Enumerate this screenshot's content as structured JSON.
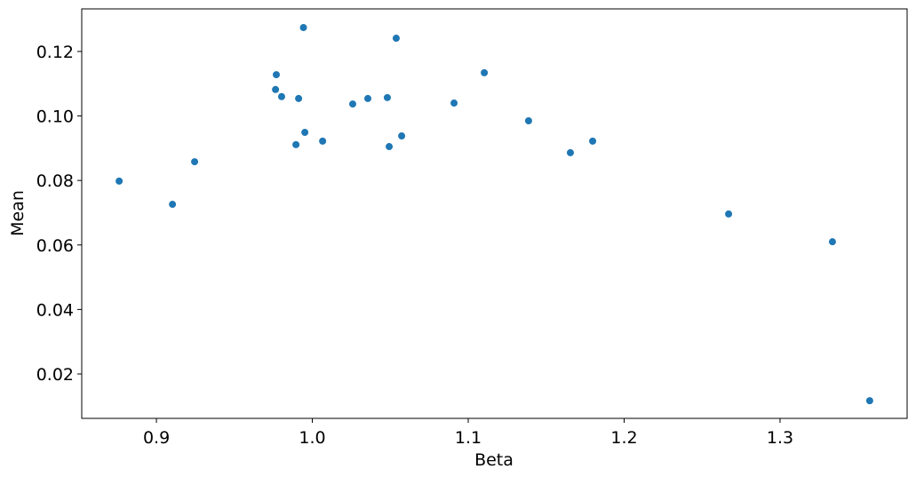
{
  "chart_data": {
    "type": "scatter",
    "x_label": "Beta",
    "y_label": "Mean",
    "color": "#1f77b4",
    "grid": false,
    "xlim": [
      0.8521,
      1.3815
    ],
    "ylim": [
      0.00623,
      0.1332
    ],
    "xticks": [
      0.9,
      {
        "value": 1,
        "label": "1.0"
      },
      1.1,
      1.2,
      1.3
    ],
    "yticks": [
      0.02,
      0.04,
      0.06,
      0.08,
      {
        "value": 0.1,
        "label": "0.10"
      },
      0.12
    ],
    "x": [
      0.8761,
      0.9103,
      0.9245,
      0.9764,
      0.9769,
      0.9803,
      0.9912,
      0.9895,
      0.9943,
      0.9952,
      1.0066,
      1.0259,
      1.0356,
      1.0481,
      1.0493,
      1.0538,
      1.0573,
      1.0909,
      1.1103,
      1.1387,
      1.1655,
      1.1798,
      1.267,
      1.3336,
      1.3575
    ],
    "y": [
      0.0798,
      0.0726,
      0.0858,
      0.1082,
      0.1128,
      0.106,
      0.1054,
      0.0911,
      0.1274,
      0.0949,
      0.0922,
      0.1037,
      0.1054,
      0.1057,
      0.0905,
      0.1241,
      0.0938,
      0.104,
      0.1134,
      0.0985,
      0.0886,
      0.0922,
      0.0696,
      0.061,
      0.0117
    ]
  }
}
